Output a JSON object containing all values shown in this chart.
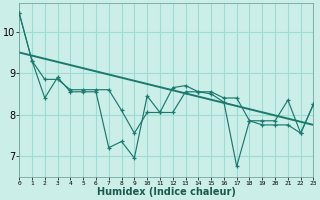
{
  "xlabel": "Humidex (Indice chaleur)",
  "bg_color": "#cceee8",
  "grid_color": "#99ddd5",
  "line_color": "#1a7a6e",
  "xlim": [
    0,
    23
  ],
  "ylim": [
    6.5,
    10.7
  ],
  "yticks": [
    7,
    8,
    9,
    10
  ],
  "xticks": [
    0,
    1,
    2,
    3,
    4,
    5,
    6,
    7,
    8,
    9,
    10,
    11,
    12,
    13,
    14,
    15,
    16,
    17,
    18,
    19,
    20,
    21,
    22,
    23
  ],
  "xtick_labels": [
    "0",
    "1",
    "2",
    "3",
    "4",
    "5",
    "6",
    "7",
    "8",
    "9",
    "10",
    "11",
    "12",
    "13",
    "14",
    "15",
    "16",
    "17",
    "18",
    "19",
    "20",
    "21",
    "22",
    "23"
  ],
  "series1_y": [
    10.45,
    9.3,
    8.4,
    8.9,
    8.55,
    8.55,
    8.55,
    7.2,
    7.35,
    6.95,
    8.45,
    8.05,
    8.65,
    8.7,
    8.55,
    8.5,
    8.3,
    6.75,
    7.85,
    7.85,
    7.85,
    8.35,
    7.55,
    8.25
  ],
  "series2_y": [
    10.45,
    9.3,
    8.85,
    8.85,
    8.6,
    8.6,
    8.6,
    8.6,
    8.1,
    7.55,
    8.05,
    8.05,
    8.05,
    8.55,
    8.55,
    8.55,
    8.4,
    8.4,
    7.85,
    7.75,
    7.75,
    7.75,
    7.55,
    8.25
  ],
  "trend_x": [
    0,
    23
  ],
  "trend_y": [
    9.5,
    7.75
  ]
}
